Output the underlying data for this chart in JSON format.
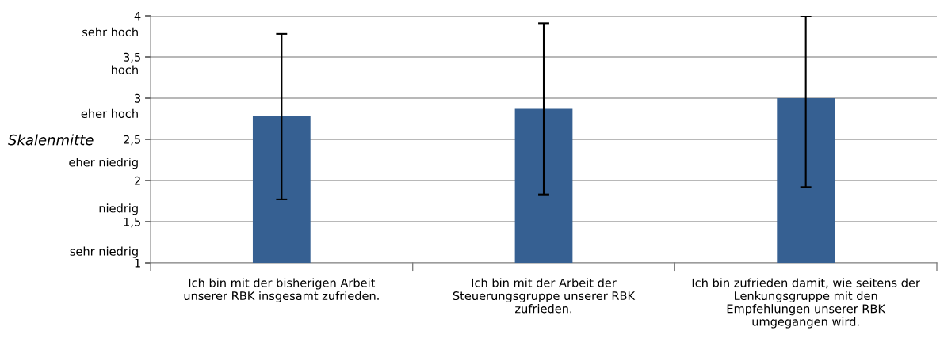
{
  "chart_data": {
    "type": "bar",
    "categories": [
      "Ich bin mit der bisherigen Arbeit\nunserer RBK insgesamt zufrieden.",
      "Ich bin mit der Arbeit der\nSteuerungsgruppe unserer RBK\nzufrieden.",
      "Ich bin zufrieden damit, wie seitens der\nLenkungsgruppe mit den\nEmpfehlungen unserer RBK\numgegangen wird."
    ],
    "values": [
      2.78,
      2.87,
      3.0
    ],
    "errors": [
      [
        1.77,
        3.78
      ],
      [
        1.83,
        3.91
      ],
      [
        1.92,
        4.0
      ]
    ],
    "color": "#366092",
    "ylim": [
      1,
      4
    ],
    "yticks": [
      1,
      {
        "value": 1.5,
        "label": "1,5"
      },
      2,
      {
        "value": 2.5,
        "label": "2,5"
      },
      3,
      {
        "value": 3.5,
        "label": "3,5"
      },
      4
    ],
    "grid": "y",
    "annotations": [
      "sehr niedrig",
      "niedrig",
      "eher niedrig",
      "eher hoch",
      "hoch",
      "sehr hoch",
      "Skalenmitte"
    ]
  }
}
